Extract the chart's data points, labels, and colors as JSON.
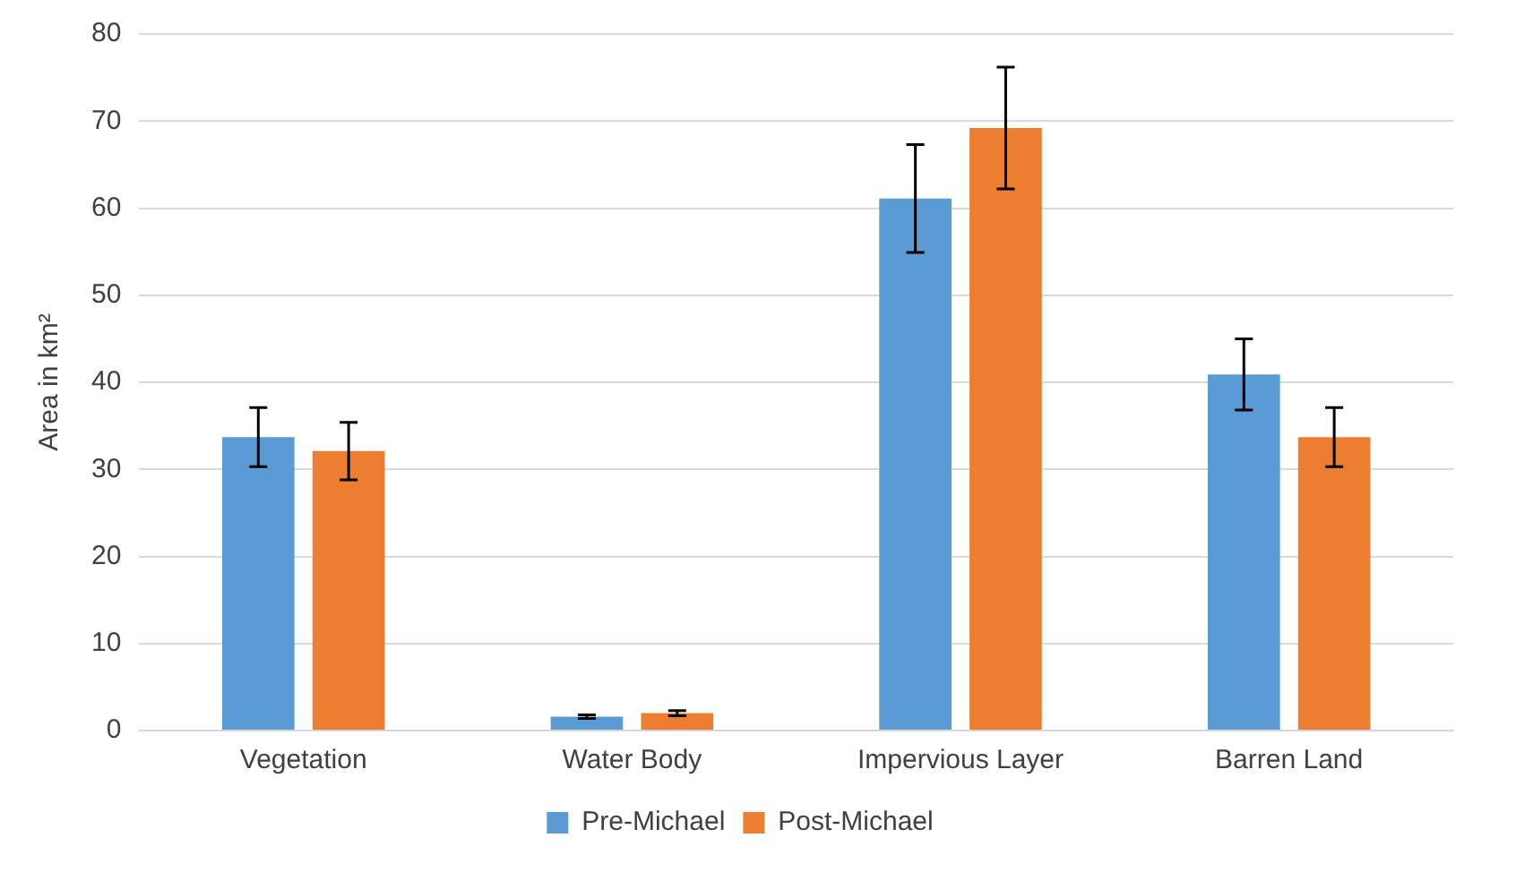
{
  "chart_data": {
    "type": "bar",
    "ylabel": "Area in km²",
    "categories": [
      "Vegetation",
      "Water Body",
      "Impervious Layer",
      "Barren Land"
    ],
    "series": [
      {
        "name": "Pre-Michael",
        "color": "#5b9bd5",
        "values": [
          33.7,
          1.6,
          61.1,
          40.9
        ],
        "errors": [
          3.4,
          0.2,
          6.2,
          4.1
        ]
      },
      {
        "name": "Post-Michael",
        "color": "#ed7d31",
        "values": [
          32.1,
          2.0,
          69.2,
          33.7
        ],
        "errors": [
          3.3,
          0.3,
          7.0,
          3.4
        ]
      }
    ],
    "ylim": [
      0,
      80
    ],
    "yticks": [
      0,
      10,
      20,
      30,
      40,
      50,
      60,
      70,
      80
    ],
    "grid": "y",
    "legend": "bottom"
  }
}
